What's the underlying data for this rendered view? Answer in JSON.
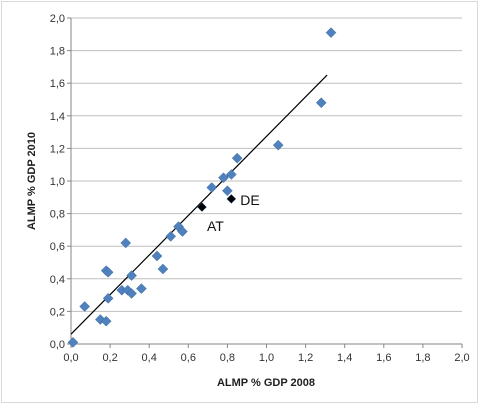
{
  "chart_data": {
    "type": "scatter",
    "title": "",
    "xlabel": "ALMP % GDP 2008",
    "ylabel": "ALMP % GDP 2010",
    "xlim": [
      0,
      2
    ],
    "ylim": [
      0,
      2
    ],
    "x_ticks": [
      "0,0",
      "0,2",
      "0,4",
      "0,6",
      "0,8",
      "1,0",
      "1,2",
      "1,4",
      "1,6",
      "1,8",
      "2,0"
    ],
    "y_ticks": [
      "0,0",
      "0,2",
      "0,4",
      "0,6",
      "0,8",
      "1,0",
      "1,2",
      "1,4",
      "1,6",
      "1,8",
      "2,0"
    ],
    "grid": "horizontal",
    "legend": "none",
    "marker": "diamond",
    "colors": {
      "points": "#4f81bd",
      "highlight": "#000000",
      "trendline": "#000000",
      "grid": "#bfbfbf"
    },
    "points": [
      {
        "x": 0.01,
        "y": 0.01
      },
      {
        "x": 0.07,
        "y": 0.23
      },
      {
        "x": 0.15,
        "y": 0.15
      },
      {
        "x": 0.18,
        "y": 0.14
      },
      {
        "x": 0.18,
        "y": 0.45
      },
      {
        "x": 0.19,
        "y": 0.44
      },
      {
        "x": 0.19,
        "y": 0.28
      },
      {
        "x": 0.26,
        "y": 0.33
      },
      {
        "x": 0.28,
        "y": 0.62
      },
      {
        "x": 0.29,
        "y": 0.33
      },
      {
        "x": 0.31,
        "y": 0.31
      },
      {
        "x": 0.31,
        "y": 0.42
      },
      {
        "x": 0.36,
        "y": 0.34
      },
      {
        "x": 0.44,
        "y": 0.54
      },
      {
        "x": 0.47,
        "y": 0.46
      },
      {
        "x": 0.51,
        "y": 0.66
      },
      {
        "x": 0.55,
        "y": 0.72
      },
      {
        "x": 0.57,
        "y": 0.69
      },
      {
        "x": 0.72,
        "y": 0.96
      },
      {
        "x": 0.78,
        "y": 1.02
      },
      {
        "x": 0.8,
        "y": 0.94
      },
      {
        "x": 0.82,
        "y": 1.04
      },
      {
        "x": 0.85,
        "y": 1.14
      },
      {
        "x": 1.06,
        "y": 1.22
      },
      {
        "x": 1.28,
        "y": 1.48
      },
      {
        "x": 1.33,
        "y": 1.91
      }
    ],
    "highlighted_points": [
      {
        "label": "AT",
        "x": 0.67,
        "y": 0.84
      },
      {
        "label": "DE",
        "x": 0.82,
        "y": 0.89
      }
    ],
    "trendline": {
      "x": [
        0.0,
        1.31
      ],
      "y": [
        0.06,
        1.65
      ]
    }
  }
}
